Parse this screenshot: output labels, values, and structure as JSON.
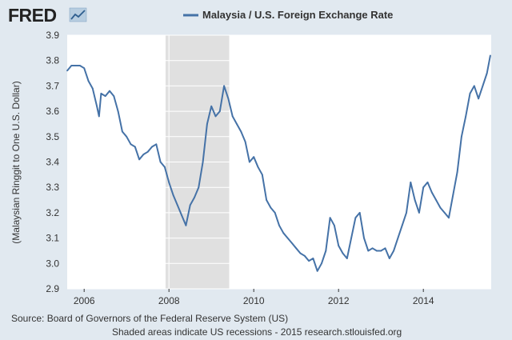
{
  "brand": {
    "logo_text": "FRED",
    "logo_icon": "chart-line-icon"
  },
  "footer": {
    "source": "Source: Board of Governors of the Federal Reserve System (US)",
    "note": "Shaded areas indicate US recessions - 2015 research.stlouisfed.org"
  },
  "colors": {
    "background": "#e1e9f0",
    "plot_background": "#ffffff",
    "series": "#4572a7",
    "recession": "#e0e0e0"
  },
  "chart_data": {
    "type": "line",
    "title": "",
    "xlabel": "",
    "ylabel": "(Malaysian Ringgit to One U.S. Dollar)",
    "legend": "Malaysia / U.S. Foreign Exchange Rate",
    "legend_position": "top-center",
    "grid": true,
    "xlim": [
      2005.6,
      2015.6
    ],
    "ylim": [
      2.9,
      3.9
    ],
    "x_ticks": [
      2006,
      2008,
      2010,
      2012,
      2014
    ],
    "x_tick_labels": [
      "2006",
      "2008",
      "2010",
      "2012",
      "2014"
    ],
    "y_ticks": [
      2.9,
      3.0,
      3.1,
      3.2,
      3.3,
      3.4,
      3.5,
      3.6,
      3.7,
      3.8,
      3.9
    ],
    "y_tick_labels": [
      "2.9",
      "3.0",
      "3.1",
      "3.2",
      "3.3",
      "3.4",
      "3.5",
      "3.6",
      "3.7",
      "3.8",
      "3.9"
    ],
    "recessions": [
      [
        2007.92,
        2009.42
      ]
    ],
    "series": [
      {
        "name": "Malaysia / U.S. Foreign Exchange Rate",
        "x": [
          2005.6,
          2005.7,
          2005.8,
          2005.9,
          2006.0,
          2006.1,
          2006.2,
          2006.3,
          2006.35,
          2006.4,
          2006.5,
          2006.6,
          2006.7,
          2006.8,
          2006.9,
          2007.0,
          2007.1,
          2007.2,
          2007.3,
          2007.4,
          2007.5,
          2007.6,
          2007.7,
          2007.8,
          2007.9,
          2008.0,
          2008.1,
          2008.2,
          2008.3,
          2008.4,
          2008.5,
          2008.6,
          2008.7,
          2008.8,
          2008.9,
          2009.0,
          2009.1,
          2009.2,
          2009.3,
          2009.4,
          2009.5,
          2009.6,
          2009.7,
          2009.8,
          2009.9,
          2010.0,
          2010.1,
          2010.2,
          2010.3,
          2010.4,
          2010.5,
          2010.6,
          2010.7,
          2010.8,
          2010.9,
          2011.0,
          2011.1,
          2011.2,
          2011.3,
          2011.4,
          2011.5,
          2011.6,
          2011.7,
          2011.8,
          2011.9,
          2012.0,
          2012.1,
          2012.2,
          2012.3,
          2012.4,
          2012.5,
          2012.6,
          2012.7,
          2012.8,
          2012.9,
          2013.0,
          2013.1,
          2013.2,
          2013.3,
          2013.4,
          2013.5,
          2013.6,
          2013.7,
          2013.8,
          2013.9,
          2014.0,
          2014.1,
          2014.2,
          2014.3,
          2014.4,
          2014.5,
          2014.6,
          2014.7,
          2014.8,
          2014.9,
          2015.0,
          2015.1,
          2015.2,
          2015.3,
          2015.4,
          2015.5,
          2015.58
        ],
        "values": [
          3.76,
          3.78,
          3.78,
          3.78,
          3.77,
          3.72,
          3.69,
          3.62,
          3.58,
          3.67,
          3.66,
          3.68,
          3.66,
          3.6,
          3.52,
          3.5,
          3.47,
          3.46,
          3.41,
          3.43,
          3.44,
          3.46,
          3.47,
          3.4,
          3.38,
          3.32,
          3.27,
          3.23,
          3.19,
          3.15,
          3.23,
          3.26,
          3.3,
          3.4,
          3.55,
          3.62,
          3.58,
          3.6,
          3.7,
          3.65,
          3.58,
          3.55,
          3.52,
          3.48,
          3.4,
          3.42,
          3.38,
          3.35,
          3.25,
          3.22,
          3.2,
          3.15,
          3.12,
          3.1,
          3.08,
          3.06,
          3.04,
          3.03,
          3.01,
          3.02,
          2.97,
          3.0,
          3.05,
          3.18,
          3.15,
          3.07,
          3.04,
          3.02,
          3.1,
          3.18,
          3.2,
          3.1,
          3.05,
          3.06,
          3.05,
          3.05,
          3.06,
          3.02,
          3.05,
          3.1,
          3.15,
          3.2,
          3.32,
          3.25,
          3.2,
          3.3,
          3.32,
          3.28,
          3.25,
          3.22,
          3.2,
          3.18,
          3.27,
          3.36,
          3.5,
          3.58,
          3.67,
          3.7,
          3.65,
          3.7,
          3.75,
          3.82
        ]
      }
    ]
  }
}
